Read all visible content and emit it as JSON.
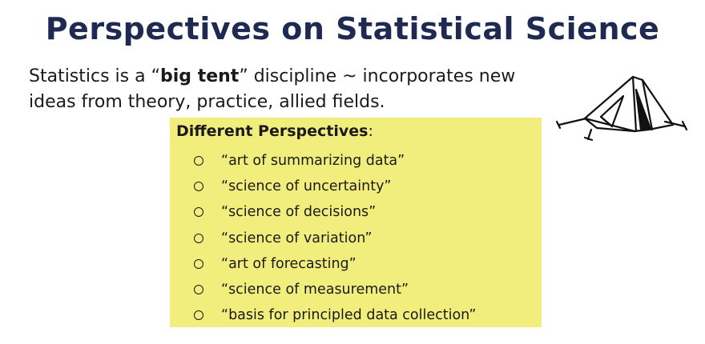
{
  "title": "Perspectives on Statistical Science",
  "intro": {
    "prefix": "Statistics is a “",
    "bold": "big tent",
    "suffix": "” discipline ~ incorporates new ideas from theory, practice, allied fields."
  },
  "panel": {
    "heading": "Different Perspectives",
    "heading_suffix": ":",
    "items": [
      "“art of summarizing data”",
      "“science of uncertainty”",
      "“science of decisions”",
      "“science of variation”",
      "“art of forecasting”",
      "“science of measurement”",
      "“basis for principled data collection”"
    ]
  },
  "colors": {
    "title": "#1f2a52",
    "panel_bg": "#f2ee7e",
    "text": "#1a1a1a"
  },
  "icons": [
    "tent-icon",
    "circle-bullet-icon"
  ]
}
